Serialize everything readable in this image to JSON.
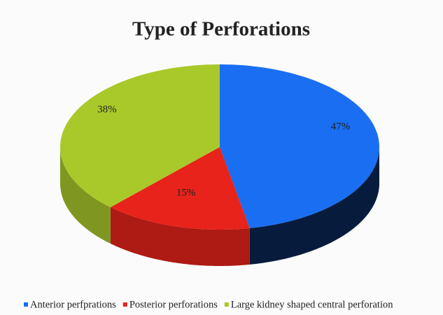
{
  "chart_data": {
    "type": "pie",
    "title": "Type of Perforations",
    "categories": [
      "Anterior perfprations",
      "Posterior perforations",
      "Large kidney shaped central perforation"
    ],
    "values": [
      47,
      15,
      38
    ],
    "value_labels": [
      "47%",
      "15%",
      "38%"
    ],
    "colors": [
      "#1a6ef2",
      "#e8231b",
      "#a9c92a"
    ],
    "legend": "bottom"
  }
}
